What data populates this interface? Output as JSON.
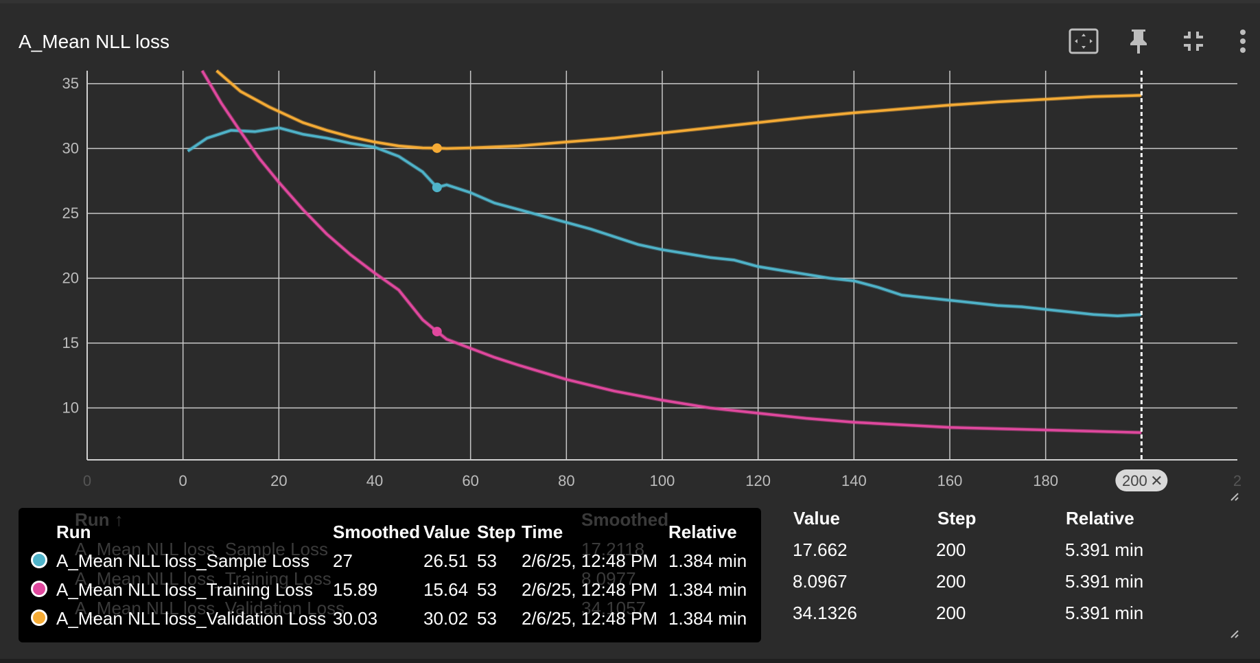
{
  "card": {
    "title": "A_Mean NLL loss"
  },
  "toolbar": {
    "buttons": [
      {
        "name": "fit-domain-icon"
      },
      {
        "name": "pin-icon"
      },
      {
        "name": "collapse-icon"
      },
      {
        "name": "more-vert-icon"
      }
    ]
  },
  "chart_data": {
    "type": "line",
    "title": "A_Mean NLL loss",
    "xlim": [
      -20,
      220
    ],
    "ylim": [
      6,
      36
    ],
    "x_ticks": [
      "0",
      "0",
      "20",
      "40",
      "60",
      "80",
      "100",
      "120",
      "140",
      "160",
      "180",
      "2"
    ],
    "y_ticks": [
      "10",
      "15",
      "20",
      "25",
      "30",
      "35"
    ],
    "grid": true,
    "cursor_step": 53,
    "range_end_step": 200,
    "range_end_label": "200",
    "series": [
      {
        "name": "A_Mean NLL loss_Sample Loss",
        "color": "#4fb3c9",
        "x": [
          1,
          5,
          10,
          15,
          20,
          25,
          30,
          35,
          40,
          45,
          50,
          53,
          55,
          60,
          65,
          70,
          75,
          80,
          85,
          90,
          95,
          100,
          105,
          110,
          115,
          120,
          125,
          130,
          135,
          140,
          145,
          150,
          155,
          160,
          165,
          170,
          175,
          180,
          185,
          190,
          195,
          200
        ],
        "y": [
          29.8,
          30.8,
          31.4,
          31.3,
          31.6,
          31.1,
          30.8,
          30.4,
          30.1,
          29.4,
          28.2,
          27,
          27.2,
          26.6,
          25.8,
          25.3,
          24.8,
          24.3,
          23.8,
          23.2,
          22.6,
          22.2,
          21.9,
          21.6,
          21.4,
          20.9,
          20.6,
          20.3,
          20.0,
          19.8,
          19.3,
          18.7,
          18.5,
          18.3,
          18.1,
          17.9,
          17.8,
          17.6,
          17.4,
          17.2,
          17.1,
          17.2
        ],
        "smoothed_at_cursor": "27",
        "value_at_cursor": "26.51",
        "step_at_cursor": "53",
        "time_at_cursor": "2/6/25, 12:48 PM",
        "relative_at_cursor": "1.384 min",
        "last_value": "17.662",
        "last_step": "200",
        "last_relative": "5.391 min"
      },
      {
        "name": "A_Mean NLL loss_Training Loss",
        "color": "#e0489e",
        "x": [
          4,
          8,
          12,
          16,
          20,
          25,
          30,
          35,
          40,
          45,
          50,
          53,
          55,
          60,
          65,
          70,
          80,
          90,
          100,
          110,
          120,
          130,
          140,
          150,
          160,
          170,
          180,
          190,
          200
        ],
        "y": [
          36,
          33.5,
          31.3,
          29.2,
          27.4,
          25.3,
          23.4,
          21.8,
          20.4,
          19.1,
          16.8,
          15.89,
          15.3,
          14.6,
          13.9,
          13.3,
          12.2,
          11.3,
          10.6,
          10.0,
          9.6,
          9.2,
          8.9,
          8.7,
          8.5,
          8.4,
          8.3,
          8.2,
          8.1
        ],
        "smoothed_at_cursor": "15.89",
        "value_at_cursor": "15.64",
        "step_at_cursor": "53",
        "time_at_cursor": "2/6/25, 12:48 PM",
        "relative_at_cursor": "1.384 min",
        "last_value": "8.0967",
        "last_step": "200",
        "last_relative": "5.391 min"
      },
      {
        "name": "A_Mean NLL loss_Validation Loss",
        "color": "#f5ab35",
        "x": [
          7,
          12,
          18,
          25,
          30,
          35,
          40,
          45,
          50,
          53,
          55,
          60,
          70,
          80,
          90,
          100,
          110,
          120,
          130,
          140,
          150,
          160,
          170,
          180,
          190,
          200
        ],
        "y": [
          36,
          34.4,
          33.2,
          32.0,
          31.4,
          30.9,
          30.5,
          30.2,
          30.05,
          30.03,
          30.0,
          30.05,
          30.2,
          30.5,
          30.8,
          31.2,
          31.6,
          32.0,
          32.4,
          32.75,
          33.05,
          33.35,
          33.6,
          33.8,
          34.0,
          34.1
        ],
        "smoothed_at_cursor": "30.03",
        "value_at_cursor": "30.02",
        "step_at_cursor": "53",
        "time_at_cursor": "2/6/25, 12:48 PM",
        "relative_at_cursor": "1.384 min",
        "last_value": "34.1326",
        "last_step": "200",
        "last_relative": "5.391 min"
      }
    ]
  },
  "tooltip": {
    "headers": {
      "run": "Run",
      "smoothed": "Smoothed",
      "value": "Value",
      "step": "Step",
      "time": "Time",
      "relative": "Relative"
    },
    "ghost": {
      "run_header": "Run ↑",
      "smoothed_header": "Smoothed",
      "row1_run": "A_Mean NLL loss_Sample Loss",
      "row1_smoothed": "17.2118",
      "row2_run": "A_Mean NLL loss_Training Loss",
      "row2_smoothed": "8.0977",
      "row3_run": "A_Mean NLL loss_Validation Loss",
      "row3_smoothed": "34.1057"
    }
  },
  "range_table": {
    "headers": {
      "value": "Value",
      "step": "Step",
      "relative": "Relative"
    }
  }
}
